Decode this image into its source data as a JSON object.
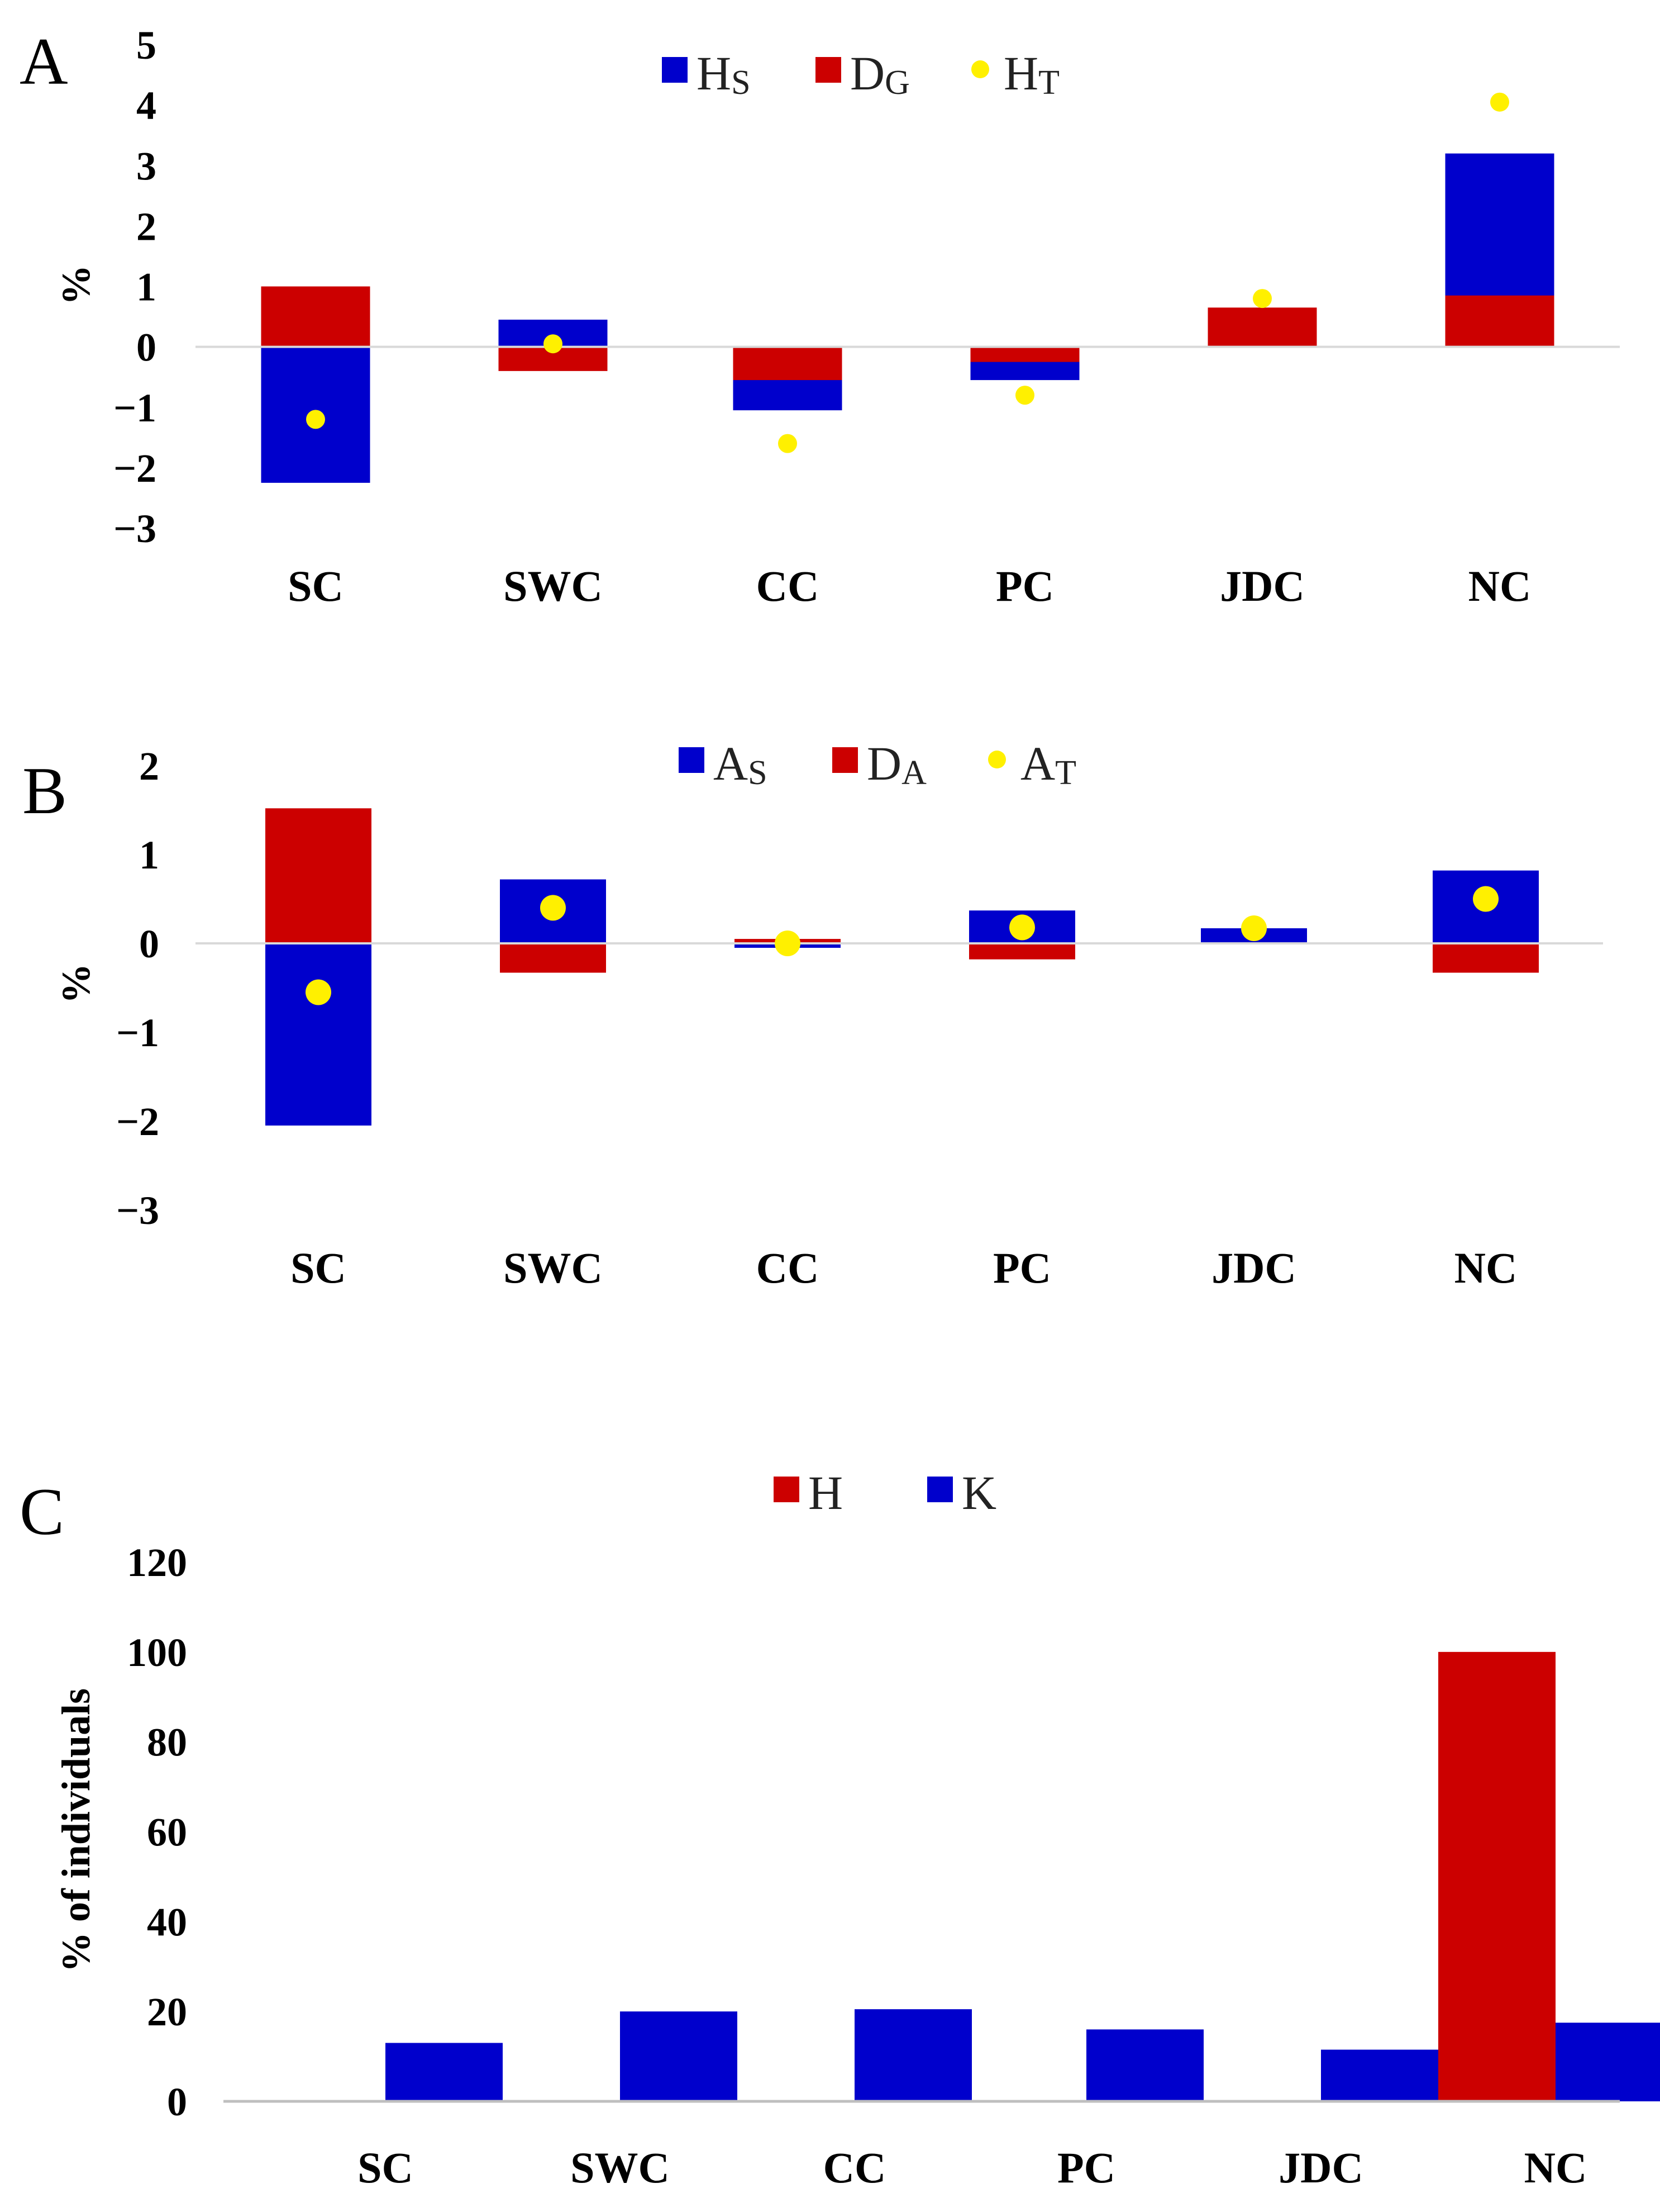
{
  "colors": {
    "blue": "#0000CC",
    "red": "#CC0000",
    "yellow": "#FFF000",
    "axis": "#D9D9D9"
  },
  "panels": {
    "A": {
      "letter": "A"
    },
    "B": {
      "letter": "B"
    },
    "C": {
      "letter": "C"
    }
  },
  "chart_data": [
    {
      "panel": "A",
      "type": "bar",
      "stacked": true,
      "categories": [
        "SC",
        "SWC",
        "CC",
        "PC",
        "JDC",
        "NC"
      ],
      "series": [
        {
          "name": "Hs",
          "legend_main": "H",
          "legend_sub": "S",
          "color": "#0000CC",
          "values": [
            -2.25,
            0.45,
            -1.05,
            -0.55,
            0.18,
            3.2
          ]
        },
        {
          "name": "DG",
          "legend_main": "D",
          "legend_sub": "G",
          "color": "#CC0000",
          "values": [
            1.0,
            -0.4,
            -0.55,
            -0.25,
            0.65,
            0.85
          ]
        }
      ],
      "points": {
        "name": "HT",
        "legend_main": "H",
        "legend_sub": "T",
        "color": "#FFF000",
        "values": [
          -1.2,
          0.05,
          -1.6,
          -0.8,
          0.8,
          4.05
        ]
      },
      "ylabel": "%",
      "ylim": [
        -3,
        5
      ],
      "yticks": [
        "−3",
        "−2",
        "−1",
        "0",
        "1",
        "2",
        "3",
        "4",
        "5"
      ],
      "legend_position": "top-center",
      "grid": false
    },
    {
      "panel": "B",
      "type": "bar",
      "stacked": true,
      "categories": [
        "SC",
        "SWC",
        "CC",
        "PC",
        "JDC",
        "NC"
      ],
      "series": [
        {
          "name": "As",
          "legend_main": "A",
          "legend_sub": "S",
          "color": "#0000CC",
          "values": [
            -2.05,
            0.72,
            -0.05,
            0.37,
            0.17,
            0.82
          ]
        },
        {
          "name": "DA",
          "legend_main": "D",
          "legend_sub": "A",
          "color": "#CC0000",
          "values": [
            1.52,
            -0.33,
            0.05,
            -0.18,
            0.0,
            -0.33
          ]
        }
      ],
      "points": {
        "name": "AT",
        "legend_main": "A",
        "legend_sub": "T",
        "color": "#FFF000",
        "values": [
          -0.55,
          0.4,
          0.0,
          0.18,
          0.17,
          0.5
        ]
      },
      "ylabel": "%",
      "ylim": [
        -3,
        2
      ],
      "yticks": [
        "−3",
        "−2",
        "−1",
        "0",
        "1",
        "2"
      ],
      "legend_position": "top-center",
      "grid": false
    },
    {
      "panel": "C",
      "type": "bar",
      "stacked": false,
      "categories": [
        "SC",
        "SWC",
        "CC",
        "PC",
        "JDC",
        "NC"
      ],
      "series": [
        {
          "name": "H",
          "legend_main": "H",
          "legend_sub": "",
          "color": "#CC0000",
          "values": [
            0,
            0,
            0,
            0,
            0,
            100
          ]
        },
        {
          "name": "K",
          "legend_main": "K",
          "legend_sub": "",
          "color": "#0000CC",
          "values": [
            13,
            20,
            20.5,
            16,
            11.5,
            17.5
          ]
        }
      ],
      "ylabel": "% of individuals",
      "ylim": [
        0,
        120
      ],
      "yticks": [
        "0",
        "20",
        "40",
        "60",
        "80",
        "100",
        "120"
      ],
      "legend_position": "top-center",
      "grid": false
    }
  ]
}
